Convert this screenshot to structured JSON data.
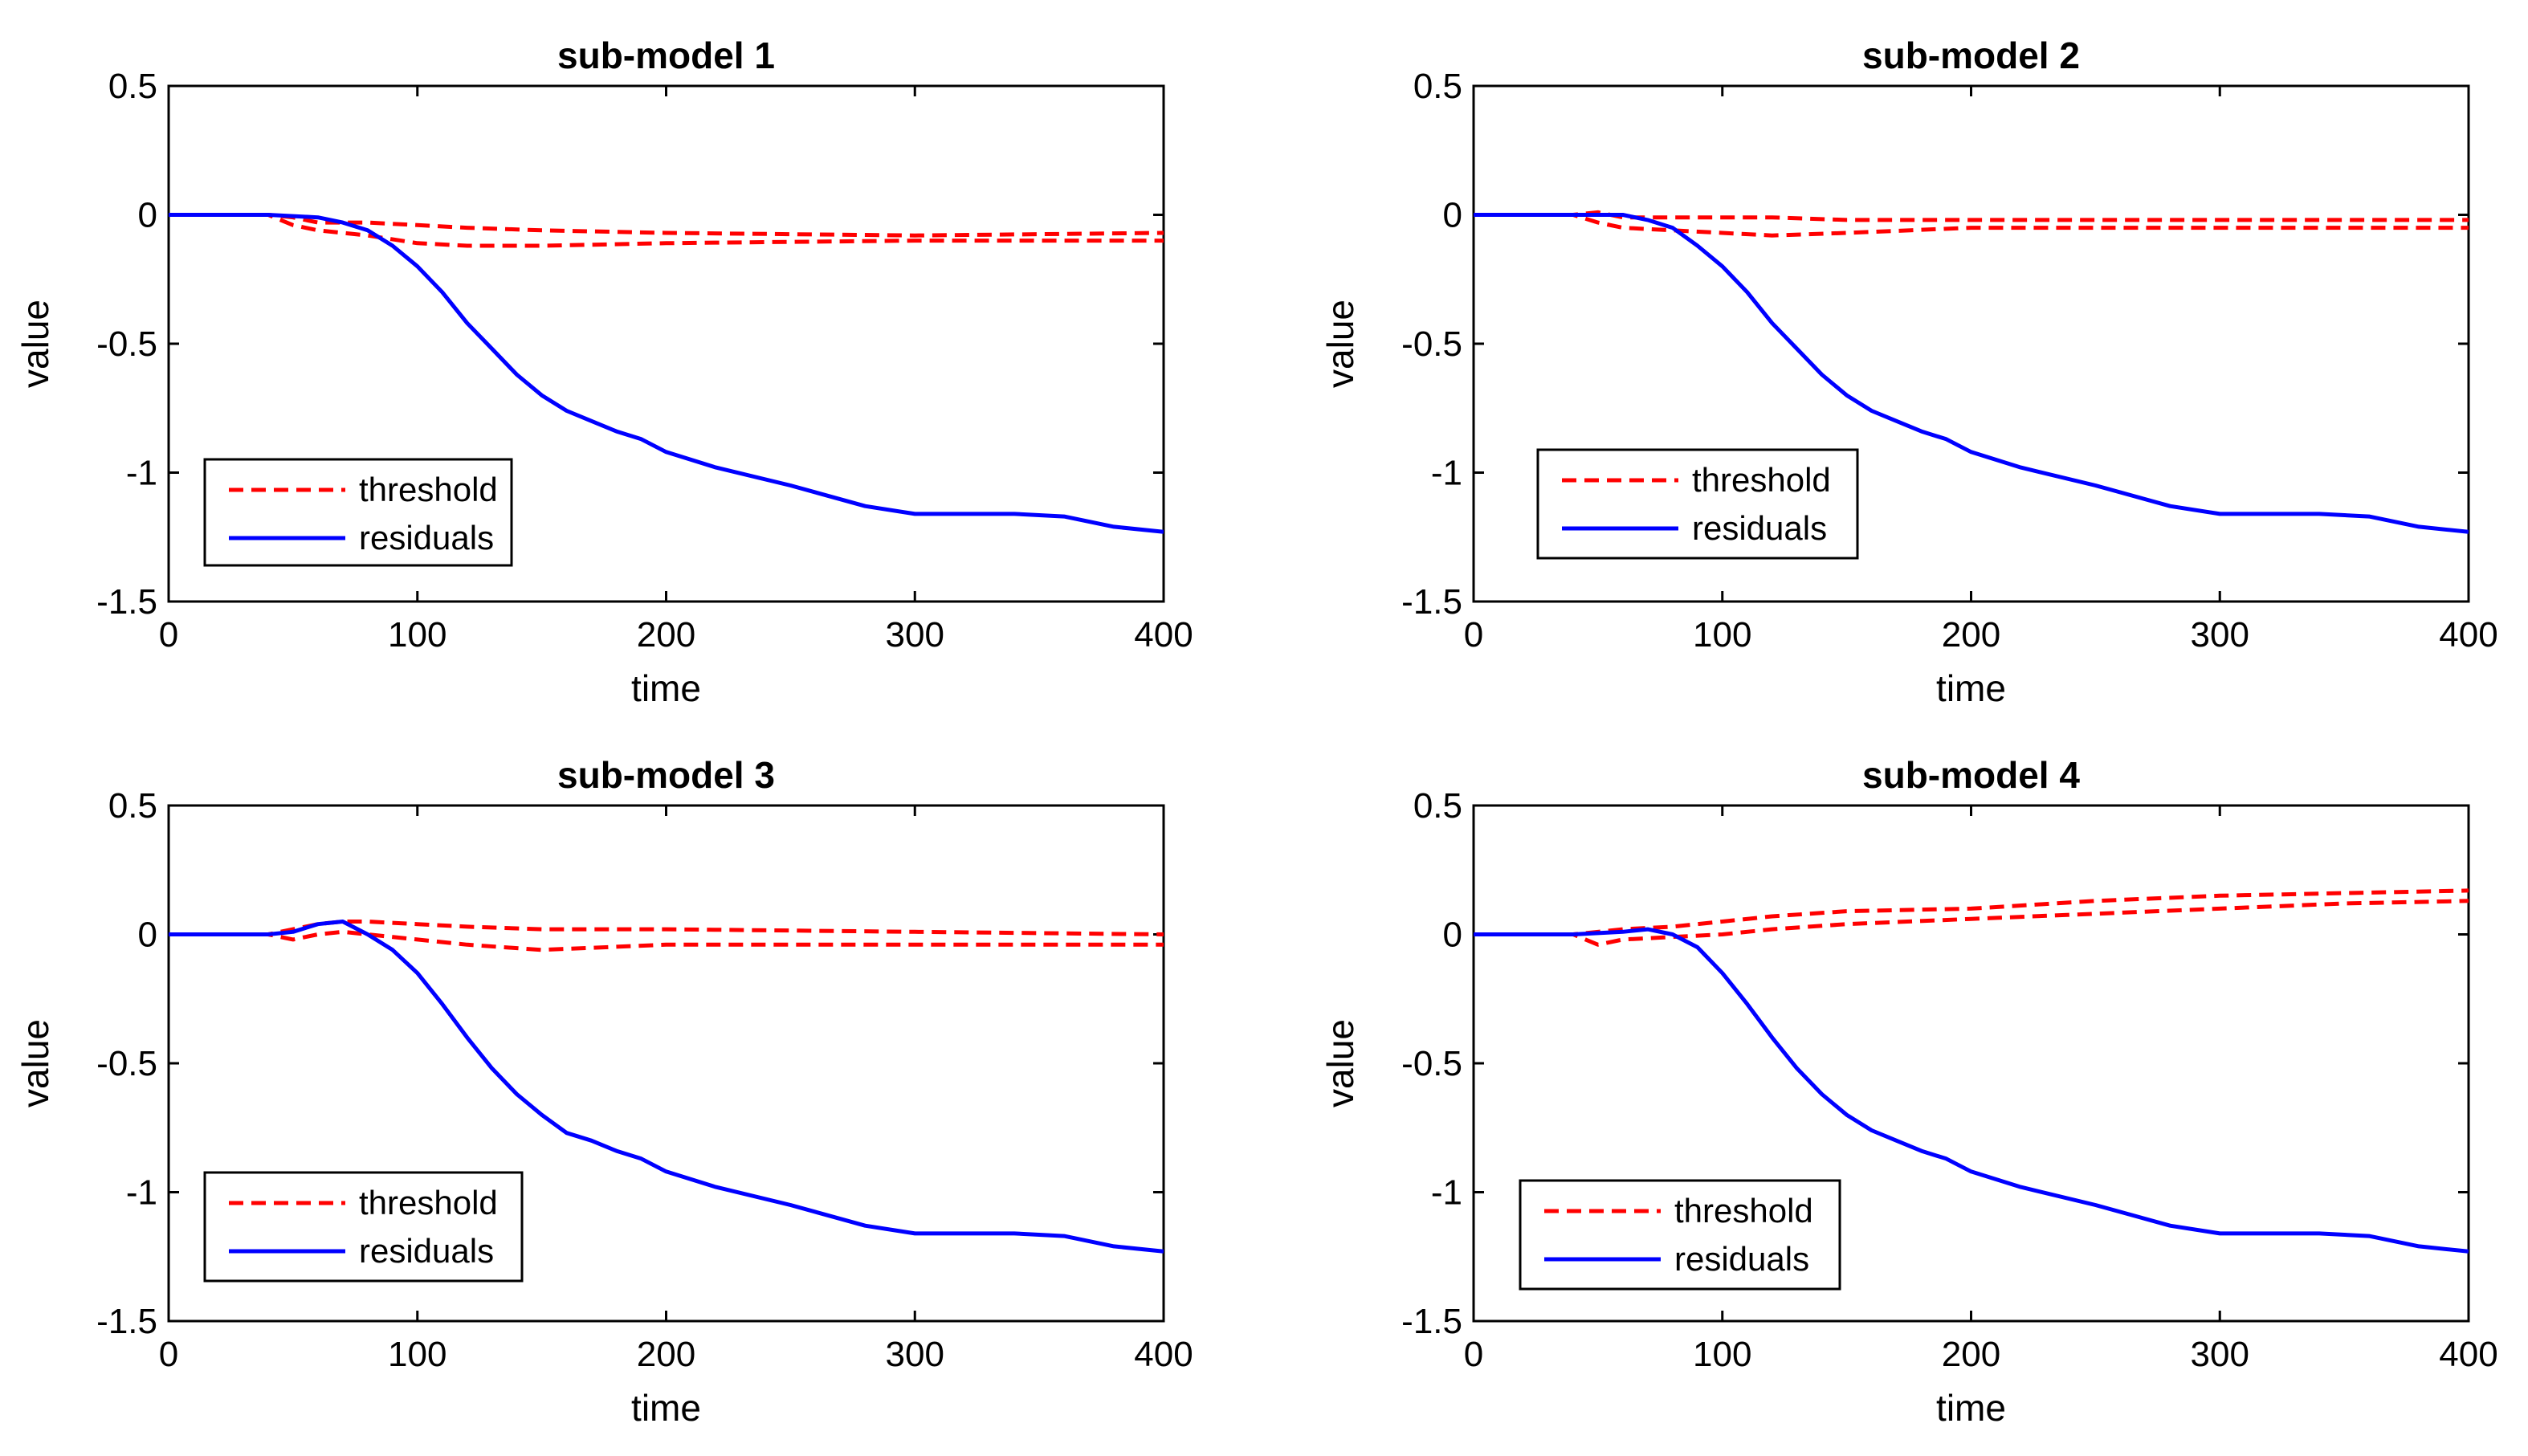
{
  "chart_data": [
    {
      "type": "line",
      "title": "sub-model 1",
      "xlabel": "time",
      "ylabel": "value",
      "xlim": [
        0,
        400
      ],
      "ylim": [
        -1.5,
        0.5
      ],
      "xticks": [
        "0",
        "100",
        "200",
        "300",
        "400"
      ],
      "yticks": [
        "-1.5",
        "-1",
        "-0.5",
        "0",
        "0.5"
      ],
      "legend": {
        "placement": "bottom-left",
        "entries": [
          "threshold",
          "residuals"
        ]
      },
      "series": [
        {
          "name": "threshold (upper)",
          "color": "#ff0000",
          "style": "dashed",
          "x": [
            0,
            40,
            50,
            60,
            80,
            100,
            120,
            150,
            200,
            300,
            400
          ],
          "y": [
            0,
            0,
            -0.01,
            -0.03,
            -0.03,
            -0.04,
            -0.05,
            -0.06,
            -0.07,
            -0.08,
            -0.07
          ]
        },
        {
          "name": "threshold (lower)",
          "color": "#ff0000",
          "style": "dashed",
          "x": [
            0,
            40,
            50,
            60,
            80,
            100,
            120,
            150,
            200,
            300,
            400
          ],
          "y": [
            0,
            0,
            -0.04,
            -0.06,
            -0.08,
            -0.11,
            -0.12,
            -0.12,
            -0.11,
            -0.1,
            -0.1
          ]
        },
        {
          "name": "residuals",
          "color": "#0000ff",
          "style": "solid",
          "x": [
            0,
            40,
            60,
            70,
            80,
            90,
            100,
            110,
            120,
            130,
            140,
            150,
            160,
            170,
            180,
            190,
            200,
            220,
            250,
            280,
            300,
            340,
            360,
            380,
            400
          ],
          "y": [
            0,
            0,
            -0.01,
            -0.03,
            -0.06,
            -0.12,
            -0.2,
            -0.3,
            -0.42,
            -0.52,
            -0.62,
            -0.7,
            -0.76,
            -0.8,
            -0.84,
            -0.87,
            -0.92,
            -0.98,
            -1.05,
            -1.13,
            -1.16,
            -1.16,
            -1.17,
            -1.21,
            -1.23
          ]
        }
      ]
    },
    {
      "type": "line",
      "title": "sub-model 2",
      "xlabel": "time",
      "ylabel": "value",
      "xlim": [
        0,
        400
      ],
      "ylim": [
        -1.5,
        0.5
      ],
      "xticks": [
        "0",
        "100",
        "200",
        "300",
        "400"
      ],
      "yticks": [
        "-1.5",
        "-1",
        "-0.5",
        "0",
        "0.5"
      ],
      "legend": {
        "placement": "bottom-left",
        "entries": [
          "threshold",
          "residuals"
        ]
      },
      "series": [
        {
          "name": "threshold (upper)",
          "color": "#ff0000",
          "style": "dashed",
          "x": [
            0,
            40,
            50,
            60,
            80,
            100,
            120,
            150,
            200,
            300,
            400
          ],
          "y": [
            0,
            0,
            0.01,
            -0.01,
            -0.01,
            -0.01,
            -0.01,
            -0.02,
            -0.02,
            -0.02,
            -0.02
          ]
        },
        {
          "name": "threshold (lower)",
          "color": "#ff0000",
          "style": "dashed",
          "x": [
            0,
            40,
            50,
            60,
            80,
            100,
            120,
            150,
            200,
            300,
            400
          ],
          "y": [
            0,
            0,
            -0.03,
            -0.05,
            -0.06,
            -0.07,
            -0.08,
            -0.07,
            -0.05,
            -0.05,
            -0.05
          ]
        },
        {
          "name": "residuals",
          "color": "#0000ff",
          "style": "solid",
          "x": [
            0,
            40,
            60,
            70,
            80,
            90,
            100,
            110,
            120,
            130,
            140,
            150,
            160,
            170,
            180,
            190,
            200,
            220,
            250,
            280,
            300,
            340,
            360,
            380,
            400
          ],
          "y": [
            0,
            0,
            0,
            -0.02,
            -0.05,
            -0.12,
            -0.2,
            -0.3,
            -0.42,
            -0.52,
            -0.62,
            -0.7,
            -0.76,
            -0.8,
            -0.84,
            -0.87,
            -0.92,
            -0.98,
            -1.05,
            -1.13,
            -1.16,
            -1.16,
            -1.17,
            -1.21,
            -1.23
          ]
        }
      ]
    },
    {
      "type": "line",
      "title": "sub-model 3",
      "xlabel": "time",
      "ylabel": "value",
      "xlim": [
        0,
        400
      ],
      "ylim": [
        -1.5,
        0.5
      ],
      "xticks": [
        "0",
        "100",
        "200",
        "300",
        "400"
      ],
      "yticks": [
        "-1.5",
        "-1",
        "-0.5",
        "0",
        "0.5"
      ],
      "legend": {
        "placement": "bottom-left",
        "entries": [
          "threshold",
          "residuals"
        ]
      },
      "series": [
        {
          "name": "threshold (upper)",
          "color": "#ff0000",
          "style": "dashed",
          "x": [
            0,
            40,
            50,
            60,
            70,
            80,
            100,
            120,
            150,
            200,
            300,
            400
          ],
          "y": [
            0,
            0,
            0.02,
            0.04,
            0.05,
            0.05,
            0.04,
            0.03,
            0.02,
            0.02,
            0.01,
            0.0
          ]
        },
        {
          "name": "threshold (lower)",
          "color": "#ff0000",
          "style": "dashed",
          "x": [
            0,
            40,
            50,
            60,
            70,
            80,
            100,
            120,
            150,
            200,
            300,
            400
          ],
          "y": [
            0,
            0,
            -0.02,
            0.0,
            0.01,
            0.0,
            -0.02,
            -0.04,
            -0.06,
            -0.04,
            -0.04,
            -0.04
          ]
        },
        {
          "name": "residuals",
          "color": "#0000ff",
          "style": "solid",
          "x": [
            0,
            40,
            50,
            60,
            70,
            80,
            90,
            100,
            110,
            120,
            130,
            140,
            150,
            160,
            170,
            180,
            190,
            200,
            220,
            250,
            280,
            300,
            340,
            360,
            380,
            400
          ],
          "y": [
            0,
            0,
            0.01,
            0.04,
            0.05,
            0.0,
            -0.06,
            -0.15,
            -0.27,
            -0.4,
            -0.52,
            -0.62,
            -0.7,
            -0.77,
            -0.8,
            -0.84,
            -0.87,
            -0.92,
            -0.98,
            -1.05,
            -1.13,
            -1.16,
            -1.16,
            -1.17,
            -1.21,
            -1.23
          ]
        }
      ]
    },
    {
      "type": "line",
      "title": "sub-model 4",
      "xlabel": "time",
      "ylabel": "value",
      "xlim": [
        0,
        400
      ],
      "ylim": [
        -1.5,
        0.5
      ],
      "xticks": [
        "0",
        "100",
        "200",
        "300",
        "400"
      ],
      "yticks": [
        "-1.5",
        "-1",
        "-0.5",
        "0",
        "0.5"
      ],
      "legend": {
        "placement": "bottom-left",
        "entries": [
          "threshold",
          "residuals"
        ]
      },
      "series": [
        {
          "name": "threshold (upper)",
          "color": "#ff0000",
          "style": "dashed",
          "x": [
            0,
            40,
            50,
            60,
            80,
            100,
            120,
            150,
            200,
            250,
            300,
            350,
            400
          ],
          "y": [
            0,
            0,
            0.01,
            0.02,
            0.03,
            0.05,
            0.07,
            0.09,
            0.1,
            0.13,
            0.15,
            0.16,
            0.17
          ]
        },
        {
          "name": "threshold (lower)",
          "color": "#ff0000",
          "style": "dashed",
          "x": [
            0,
            40,
            50,
            60,
            80,
            100,
            120,
            150,
            200,
            250,
            300,
            350,
            400
          ],
          "y": [
            0,
            0,
            -0.04,
            -0.02,
            -0.01,
            0.0,
            0.02,
            0.04,
            0.06,
            0.08,
            0.1,
            0.12,
            0.13
          ]
        },
        {
          "name": "residuals",
          "color": "#0000ff",
          "style": "solid",
          "x": [
            0,
            40,
            60,
            70,
            80,
            90,
            100,
            110,
            120,
            130,
            140,
            150,
            160,
            170,
            180,
            190,
            200,
            220,
            250,
            280,
            300,
            340,
            360,
            380,
            400
          ],
          "y": [
            0,
            0,
            0.01,
            0.02,
            0.0,
            -0.05,
            -0.15,
            -0.27,
            -0.4,
            -0.52,
            -0.62,
            -0.7,
            -0.76,
            -0.8,
            -0.84,
            -0.87,
            -0.92,
            -0.98,
            -1.05,
            -1.13,
            -1.16,
            -1.16,
            -1.17,
            -1.21,
            -1.23
          ]
        }
      ]
    }
  ]
}
